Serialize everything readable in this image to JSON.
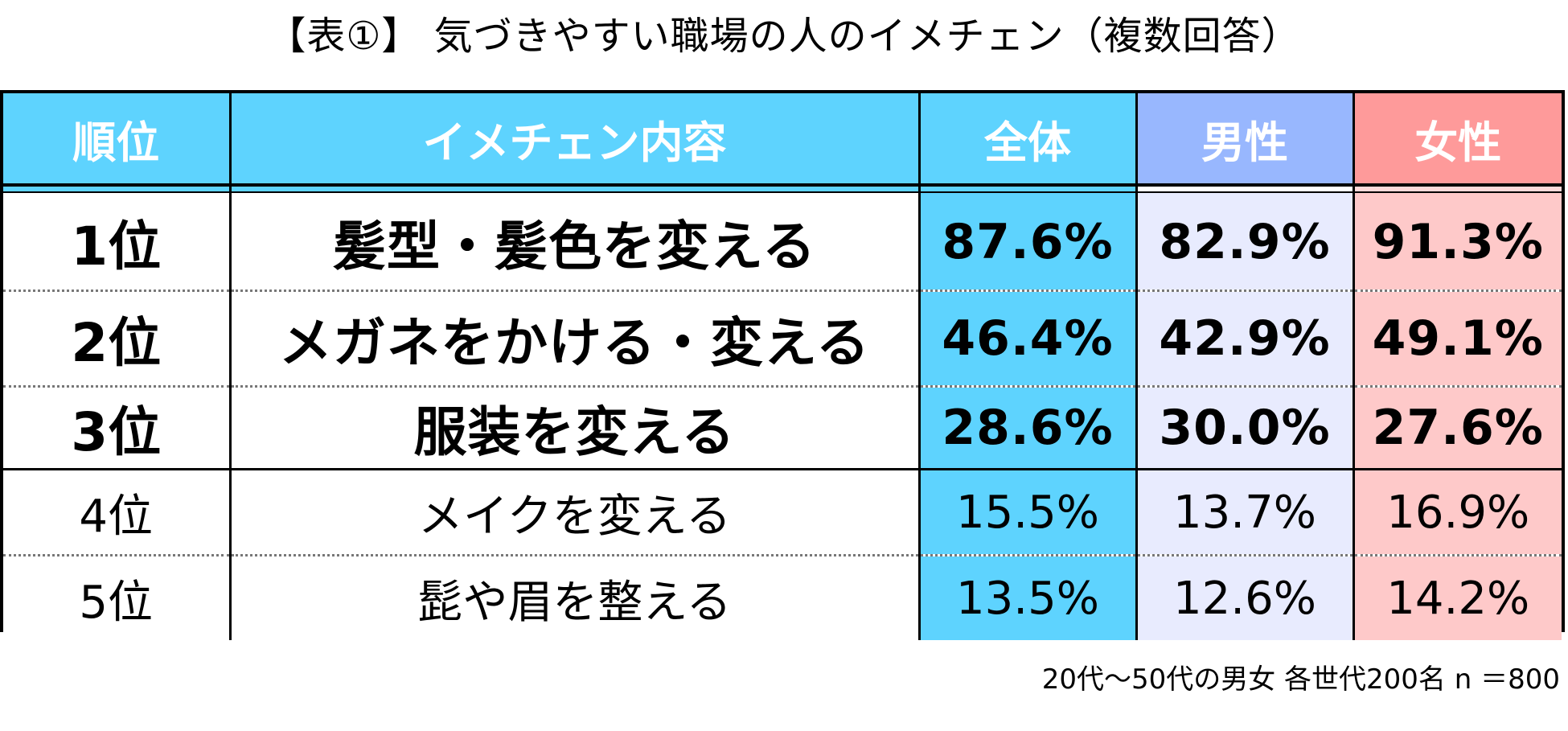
{
  "title": "【表①】 気づきやすい職場の人のイメチェン（複数回答）",
  "table": {
    "headers": {
      "rank": "順位",
      "content": "イメチェン内容",
      "all": "全体",
      "male": "男性",
      "female": "女性"
    },
    "rows": [
      {
        "rank": "1位",
        "content": "髪型・髪色を変える",
        "all": "87.6%",
        "male": "82.9%",
        "female": "91.3%"
      },
      {
        "rank": "2位",
        "content": "メガネをかける・変える",
        "all": "46.4%",
        "male": "42.9%",
        "female": "49.1%"
      },
      {
        "rank": "3位",
        "content": "服装を変える",
        "all": "28.6%",
        "male": "30.0%",
        "female": "27.6%"
      },
      {
        "rank": "4位",
        "content": "メイクを変える",
        "all": "15.5%",
        "male": "13.7%",
        "female": "16.9%"
      },
      {
        "rank": "5位",
        "content": "髭や眉を整える",
        "all": "13.5%",
        "male": "12.6%",
        "female": "14.2%"
      }
    ]
  },
  "footnote": "20代～50代の男女 各世代200名  n ＝800",
  "colors": {
    "all_header": "#5ed3fe",
    "male_header": "#98b7fe",
    "female_header": "#fe9a9a",
    "all_cell": "#5ed3fe",
    "male_cell": "#e8ebfe",
    "female_cell": "#fec9c9"
  },
  "chart_data": {
    "type": "table",
    "title": "【表①】 気づきやすい職場の人のイメチェン（複数回答）",
    "columns": [
      "順位",
      "イメチェン内容",
      "全体",
      "男性",
      "女性"
    ],
    "categories": [
      "髪型・髪色を変える",
      "メガネをかける・変える",
      "服装を変える",
      "メイクを変える",
      "髭や眉を整える"
    ],
    "ranks": [
      "1位",
      "2位",
      "3位",
      "4位",
      "5位"
    ],
    "series": [
      {
        "name": "全体",
        "values": [
          87.6,
          46.4,
          28.6,
          15.5,
          13.5
        ]
      },
      {
        "name": "男性",
        "values": [
          82.9,
          42.9,
          30.0,
          13.7,
          12.6
        ]
      },
      {
        "name": "女性",
        "values": [
          91.3,
          49.1,
          27.6,
          16.9,
          14.2
        ]
      }
    ],
    "unit": "%",
    "note": "20代～50代の男女 各世代200名  n ＝800"
  }
}
